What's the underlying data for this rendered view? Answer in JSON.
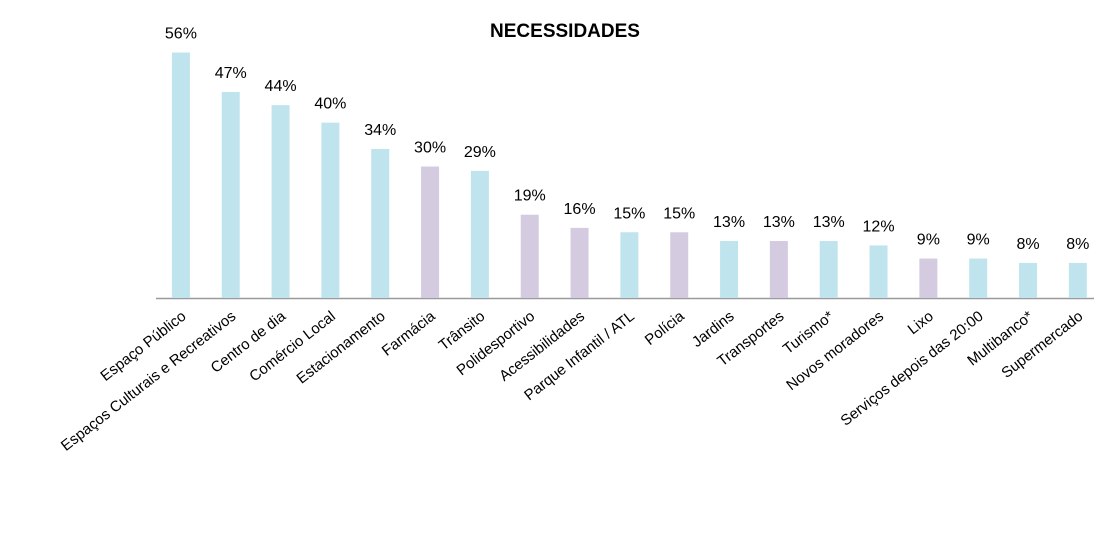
{
  "chart_data": {
    "type": "bar",
    "title": "NECESSIDADES",
    "categories": [
      "Espaço Público",
      "Espaços Culturais e Recreativos",
      "Centro de dia",
      "Comércio Local",
      "Estacionamento",
      "Farmácia",
      "Trânsito",
      "Polidesportivo",
      "Acessibilidades",
      "Parque Infantil / ATL",
      "Polícia",
      "Jardins",
      "Transportes",
      "Turismo*",
      "Novos moradores",
      "Lixo",
      "Serviços depois das 20:00",
      "Multibanco*",
      "Supermercado"
    ],
    "values": [
      56,
      47,
      44,
      40,
      34,
      30,
      29,
      19,
      16,
      15,
      15,
      13,
      13,
      13,
      12,
      9,
      9,
      8,
      8
    ],
    "value_labels": [
      "56%",
      "47%",
      "44%",
      "40%",
      "34%",
      "30%",
      "29%",
      "19%",
      "16%",
      "15%",
      "15%",
      "13%",
      "13%",
      "13%",
      "12%",
      "9%",
      "9%",
      "8%",
      "8%"
    ],
    "colors": [
      "#c0e4ed",
      "#c0e4ed",
      "#c0e4ed",
      "#c0e4ed",
      "#c0e4ed",
      "#d4cbe0",
      "#c0e4ed",
      "#d4cbe0",
      "#d4cbe0",
      "#c0e4ed",
      "#d4cbe0",
      "#c0e4ed",
      "#d4cbe0",
      "#c0e4ed",
      "#c0e4ed",
      "#d4cbe0",
      "#c0e4ed",
      "#c0e4ed",
      "#c0e4ed"
    ],
    "ylim": [
      0,
      60
    ]
  }
}
